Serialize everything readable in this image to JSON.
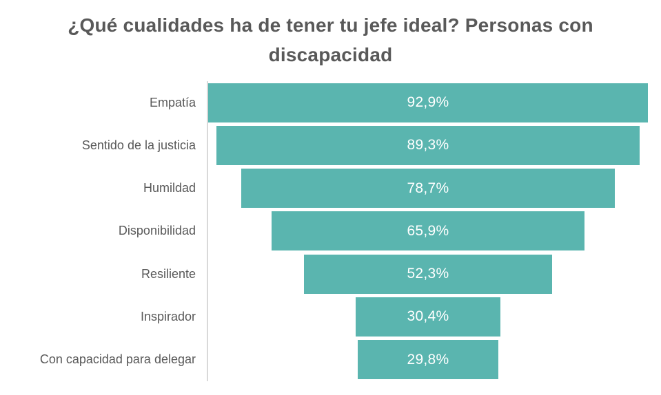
{
  "title": "¿Qué cualidades ha de tener tu jefe ideal? Personas con discapacidad",
  "chart_data": {
    "type": "bar",
    "subtype": "centered-funnel",
    "orientation": "horizontal",
    "title": "¿Qué cualidades ha de tener tu jefe ideal? Personas con discapacidad",
    "categories": [
      "Empatía",
      "Sentido de la justicia",
      "Humildad",
      "Disponibilidad",
      "Resiliente",
      "Inspirador",
      "Con capacidad para delegar"
    ],
    "values": [
      92.9,
      89.3,
      78.7,
      65.9,
      52.3,
      30.4,
      29.8
    ],
    "value_labels": [
      "92,9%",
      "89,3%",
      "78,7%",
      "65,9%",
      "52,3%",
      "30,4%",
      "29,8%"
    ],
    "xlim": [
      0,
      100
    ],
    "grid": "off",
    "legend": "none",
    "bar_color": "#5AB5AF",
    "value_label_color": "#FFFFFF",
    "category_label_color": "#595959",
    "title_color": "#595959",
    "axis_line_color": "#D9D9D9"
  }
}
